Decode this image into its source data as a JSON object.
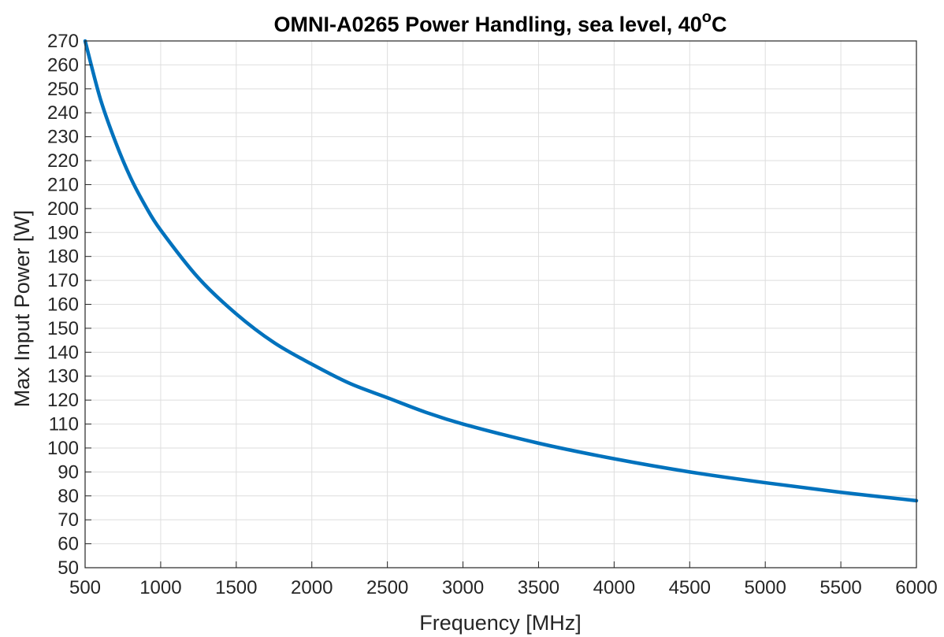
{
  "chart_data": {
    "type": "line",
    "title": "OMNI-A0265 Power Handling, sea level, 40",
    "title_superscript": "o",
    "title_suffix": "C",
    "xlabel": "Frequency [MHz]",
    "ylabel": "Max Input Power [W]",
    "xlim": [
      500,
      6000
    ],
    "ylim": [
      50,
      270
    ],
    "xticks": [
      500,
      1000,
      1500,
      2000,
      2500,
      3000,
      3500,
      4000,
      4500,
      5000,
      5500,
      6000
    ],
    "yticks": [
      50,
      60,
      70,
      80,
      90,
      100,
      110,
      120,
      130,
      140,
      150,
      160,
      170,
      180,
      190,
      200,
      210,
      220,
      230,
      240,
      250,
      260,
      270
    ],
    "grid": true,
    "line_color": "#0072BD",
    "series": [
      {
        "x": [
          500,
          600,
          700,
          800,
          900,
          1000,
          1250,
          1500,
          1750,
          2000,
          2250,
          2500,
          2750,
          3000,
          3500,
          4000,
          4500,
          5000,
          5500,
          6000
        ],
        "values": [
          270,
          246,
          228,
          213,
          201,
          191,
          171,
          156,
          144,
          135,
          127,
          121,
          115,
          110,
          102,
          95.5,
          90,
          85.5,
          81.5,
          78
        ]
      }
    ]
  }
}
